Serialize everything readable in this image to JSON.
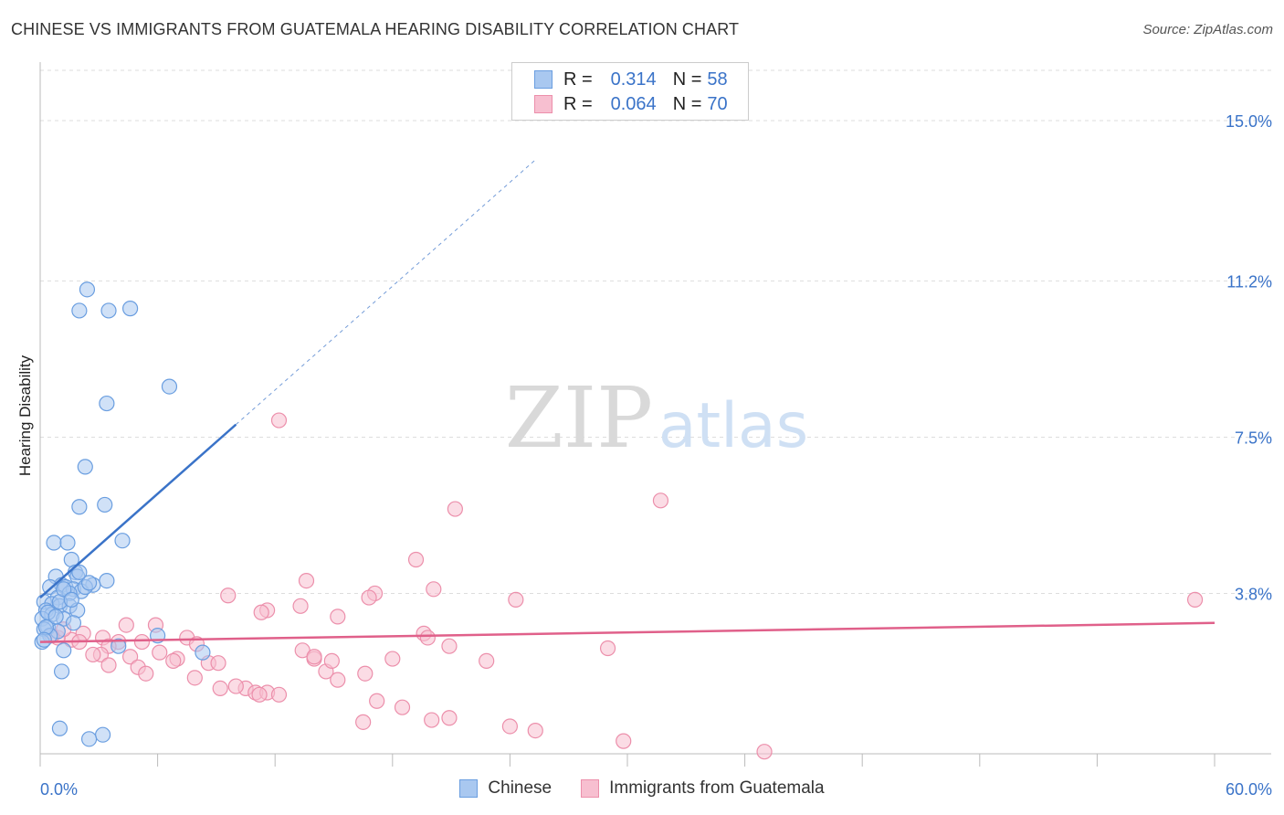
{
  "header": {
    "title": "CHINESE VS IMMIGRANTS FROM GUATEMALA HEARING DISABILITY CORRELATION CHART",
    "source": "Source: ZipAtlas.com"
  },
  "watermark": {
    "zip": "ZIP",
    "atlas": "atlas"
  },
  "legend": {
    "series": [
      {
        "r_label": "R =",
        "r_value": "0.314",
        "n_label": "N =",
        "n_value": "58"
      },
      {
        "r_label": "R =",
        "r_value": "0.064",
        "n_label": "N =",
        "n_value": "70"
      }
    ]
  },
  "bottom_legend": {
    "chinese": "Chinese",
    "guatemala": "Immigrants from Guatemala"
  },
  "colors": {
    "chinese_fill": "#a9c8f0",
    "chinese_stroke": "#6a9ee0",
    "chinese_line": "#3a73c8",
    "guatemala_fill": "#f7bfd0",
    "guatemala_stroke": "#ec8fab",
    "guatemala_line": "#e0608a",
    "tick_text": "#3a73c8",
    "grid": "#dddddd"
  },
  "chart_data": {
    "type": "scatter",
    "title": "CHINESE VS IMMIGRANTS FROM GUATEMALA HEARING DISABILITY CORRELATION CHART",
    "xlabel": "",
    "ylabel": "Hearing Disability",
    "xlim": [
      0,
      60
    ],
    "ylim": [
      0,
      16.3
    ],
    "x_tick_labels": [
      "0.0%",
      "60.0%"
    ],
    "y_ticks": [
      {
        "value": 3.8,
        "label": "3.8%"
      },
      {
        "value": 7.5,
        "label": "7.5%"
      },
      {
        "value": 11.2,
        "label": "11.2%"
      },
      {
        "value": 15.0,
        "label": "15.0%"
      }
    ],
    "series": [
      {
        "name": "Chinese",
        "R": 0.314,
        "N": 58,
        "trend": {
          "x0": 0,
          "y0": 3.7,
          "x1": 10,
          "y1": 7.8,
          "dash_to_x": 25.3
        },
        "points": [
          [
            2.4,
            11.0
          ],
          [
            2.0,
            10.5
          ],
          [
            3.5,
            10.5
          ],
          [
            4.6,
            10.55
          ],
          [
            6.6,
            8.7
          ],
          [
            3.4,
            8.3
          ],
          [
            2.3,
            6.8
          ],
          [
            3.3,
            5.9
          ],
          [
            2.0,
            5.85
          ],
          [
            4.2,
            5.05
          ],
          [
            0.7,
            5.0
          ],
          [
            1.4,
            5.0
          ],
          [
            1.6,
            4.6
          ],
          [
            1.8,
            4.3
          ],
          [
            3.4,
            4.1
          ],
          [
            2.7,
            4.0
          ],
          [
            1.9,
            4.2
          ],
          [
            0.8,
            4.2
          ],
          [
            1.1,
            4.0
          ],
          [
            0.5,
            3.95
          ],
          [
            1.3,
            3.95
          ],
          [
            1.7,
            3.9
          ],
          [
            2.1,
            3.85
          ],
          [
            2.3,
            3.95
          ],
          [
            0.9,
            3.7
          ],
          [
            1.5,
            3.8
          ],
          [
            0.2,
            3.6
          ],
          [
            0.6,
            3.55
          ],
          [
            1.0,
            3.5
          ],
          [
            1.5,
            3.5
          ],
          [
            1.9,
            3.4
          ],
          [
            0.3,
            3.4
          ],
          [
            0.6,
            3.3
          ],
          [
            0.1,
            3.2
          ],
          [
            1.2,
            3.2
          ],
          [
            1.7,
            3.1
          ],
          [
            0.4,
            3.0
          ],
          [
            0.9,
            2.9
          ],
          [
            0.2,
            2.95
          ],
          [
            0.5,
            2.8
          ],
          [
            0.1,
            2.65
          ],
          [
            6.0,
            2.8
          ],
          [
            4.0,
            2.55
          ],
          [
            8.3,
            2.4
          ],
          [
            1.2,
            2.45
          ],
          [
            1.1,
            1.95
          ],
          [
            1.0,
            0.6
          ],
          [
            3.2,
            0.45
          ],
          [
            2.5,
            0.35
          ],
          [
            1.0,
            3.6
          ],
          [
            2.5,
            4.05
          ],
          [
            0.3,
            3.0
          ],
          [
            1.2,
            3.9
          ],
          [
            2.0,
            4.3
          ],
          [
            0.4,
            3.35
          ],
          [
            1.6,
            3.65
          ],
          [
            0.8,
            3.25
          ],
          [
            0.2,
            2.7
          ]
        ]
      },
      {
        "name": "Immigrants from Guatemala",
        "R": 0.064,
        "N": 70,
        "trend": {
          "x0": 0,
          "y0": 2.65,
          "x1": 60,
          "y1": 3.1
        },
        "points": [
          [
            12.2,
            7.9
          ],
          [
            31.7,
            6.0
          ],
          [
            21.2,
            5.8
          ],
          [
            19.2,
            4.6
          ],
          [
            13.6,
            4.1
          ],
          [
            20.1,
            3.9
          ],
          [
            17.1,
            3.8
          ],
          [
            9.6,
            3.75
          ],
          [
            16.8,
            3.7
          ],
          [
            24.3,
            3.65
          ],
          [
            13.3,
            3.5
          ],
          [
            11.6,
            3.4
          ],
          [
            11.3,
            3.35
          ],
          [
            15.2,
            3.25
          ],
          [
            59.0,
            3.65
          ],
          [
            4.4,
            3.05
          ],
          [
            5.9,
            3.05
          ],
          [
            2.2,
            2.85
          ],
          [
            3.2,
            2.75
          ],
          [
            1.6,
            2.7
          ],
          [
            0.9,
            2.75
          ],
          [
            2.0,
            2.65
          ],
          [
            4.0,
            2.65
          ],
          [
            5.2,
            2.65
          ],
          [
            7.5,
            2.75
          ],
          [
            8.0,
            2.6
          ],
          [
            3.5,
            2.55
          ],
          [
            19.6,
            2.85
          ],
          [
            19.8,
            2.75
          ],
          [
            20.9,
            2.55
          ],
          [
            6.1,
            2.4
          ],
          [
            7.0,
            2.25
          ],
          [
            13.4,
            2.45
          ],
          [
            14.0,
            2.25
          ],
          [
            3.1,
            2.35
          ],
          [
            4.6,
            2.3
          ],
          [
            6.8,
            2.2
          ],
          [
            8.6,
            2.15
          ],
          [
            9.1,
            2.15
          ],
          [
            14.6,
            1.95
          ],
          [
            14.9,
            2.2
          ],
          [
            22.8,
            2.2
          ],
          [
            18.0,
            2.25
          ],
          [
            5.0,
            2.05
          ],
          [
            3.5,
            2.1
          ],
          [
            15.2,
            1.75
          ],
          [
            16.6,
            1.9
          ],
          [
            9.2,
            1.55
          ],
          [
            10.5,
            1.55
          ],
          [
            11.0,
            1.45
          ],
          [
            11.6,
            1.45
          ],
          [
            11.2,
            1.4
          ],
          [
            12.2,
            1.4
          ],
          [
            20.0,
            0.8
          ],
          [
            20.9,
            0.85
          ],
          [
            16.5,
            0.75
          ],
          [
            24.0,
            0.65
          ],
          [
            25.3,
            0.55
          ],
          [
            29.8,
            0.3
          ],
          [
            37.0,
            0.05
          ],
          [
            29.0,
            2.5
          ],
          [
            14.0,
            2.3
          ],
          [
            18.5,
            1.1
          ],
          [
            17.2,
            1.25
          ],
          [
            0.6,
            2.8
          ],
          [
            1.2,
            2.95
          ],
          [
            2.7,
            2.35
          ],
          [
            5.4,
            1.9
          ],
          [
            7.9,
            1.8
          ],
          [
            10.0,
            1.6
          ]
        ]
      }
    ]
  }
}
